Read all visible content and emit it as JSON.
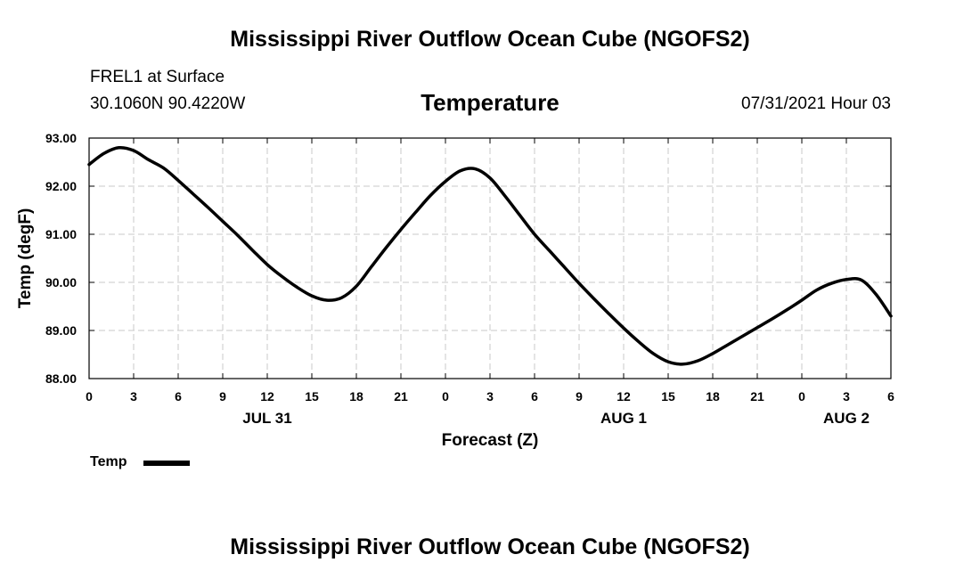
{
  "header": {
    "title": "Mississippi River Outflow Ocean Cube (NGOFS2)",
    "station": "FREL1 at Surface",
    "coords": "30.1060N  90.4220W",
    "variable": "Temperature",
    "datetime": "07/31/2021 Hour 03"
  },
  "footer": {
    "title": "Mississippi River Outflow Ocean Cube (NGOFS2)"
  },
  "legend": {
    "label": "Temp"
  },
  "chart_data": {
    "type": "line",
    "title": "Temperature",
    "xlabel": "Forecast (Z)",
    "ylabel": "Temp (degF)",
    "xlim": [
      0,
      54
    ],
    "ylim": [
      88,
      93
    ],
    "grid": true,
    "x_ticks": [
      {
        "x": 0,
        "label": "0"
      },
      {
        "x": 3,
        "label": "3"
      },
      {
        "x": 6,
        "label": "6"
      },
      {
        "x": 9,
        "label": "9"
      },
      {
        "x": 12,
        "label": "12"
      },
      {
        "x": 15,
        "label": "15"
      },
      {
        "x": 18,
        "label": "18"
      },
      {
        "x": 21,
        "label": "21"
      },
      {
        "x": 24,
        "label": "0"
      },
      {
        "x": 27,
        "label": "3"
      },
      {
        "x": 30,
        "label": "6"
      },
      {
        "x": 33,
        "label": "9"
      },
      {
        "x": 36,
        "label": "12"
      },
      {
        "x": 39,
        "label": "15"
      },
      {
        "x": 42,
        "label": "18"
      },
      {
        "x": 45,
        "label": "21"
      },
      {
        "x": 48,
        "label": "0"
      },
      {
        "x": 51,
        "label": "3"
      },
      {
        "x": 54,
        "label": "6"
      }
    ],
    "day_labels": [
      {
        "x": 12,
        "label": "JUL 31"
      },
      {
        "x": 36,
        "label": "AUG 1"
      },
      {
        "x": 51,
        "label": "AUG 2"
      }
    ],
    "y_ticks": [
      {
        "y": 88,
        "label": "88.00"
      },
      {
        "y": 89,
        "label": "89.00"
      },
      {
        "y": 90,
        "label": "90.00"
      },
      {
        "y": 91,
        "label": "91.00"
      },
      {
        "y": 92,
        "label": "92.00"
      },
      {
        "y": 93,
        "label": "93.00"
      }
    ],
    "series": [
      {
        "name": "Temp",
        "x": [
          0,
          1,
          2,
          3,
          4,
          5,
          6,
          7,
          8,
          9,
          10,
          11,
          12,
          13,
          14,
          15,
          16,
          17,
          18,
          19,
          20,
          21,
          22,
          23,
          24,
          25,
          26,
          27,
          28,
          29,
          30,
          31,
          32,
          33,
          34,
          35,
          36,
          37,
          38,
          39,
          40,
          41,
          42,
          43,
          44,
          45,
          46,
          47,
          48,
          49,
          50,
          51,
          52,
          53,
          54
        ],
        "values": [
          92.45,
          92.68,
          92.8,
          92.74,
          92.55,
          92.38,
          92.12,
          91.84,
          91.56,
          91.27,
          90.98,
          90.67,
          90.37,
          90.12,
          89.9,
          89.72,
          89.63,
          89.68,
          89.92,
          90.32,
          90.72,
          91.1,
          91.46,
          91.81,
          92.1,
          92.32,
          92.36,
          92.17,
          91.8,
          91.4,
          91.0,
          90.66,
          90.32,
          89.98,
          89.66,
          89.35,
          89.05,
          88.77,
          88.52,
          88.35,
          88.3,
          88.37,
          88.52,
          88.7,
          88.88,
          89.06,
          89.24,
          89.43,
          89.63,
          89.84,
          89.98,
          90.06,
          90.05,
          89.75,
          89.3
        ]
      }
    ]
  }
}
